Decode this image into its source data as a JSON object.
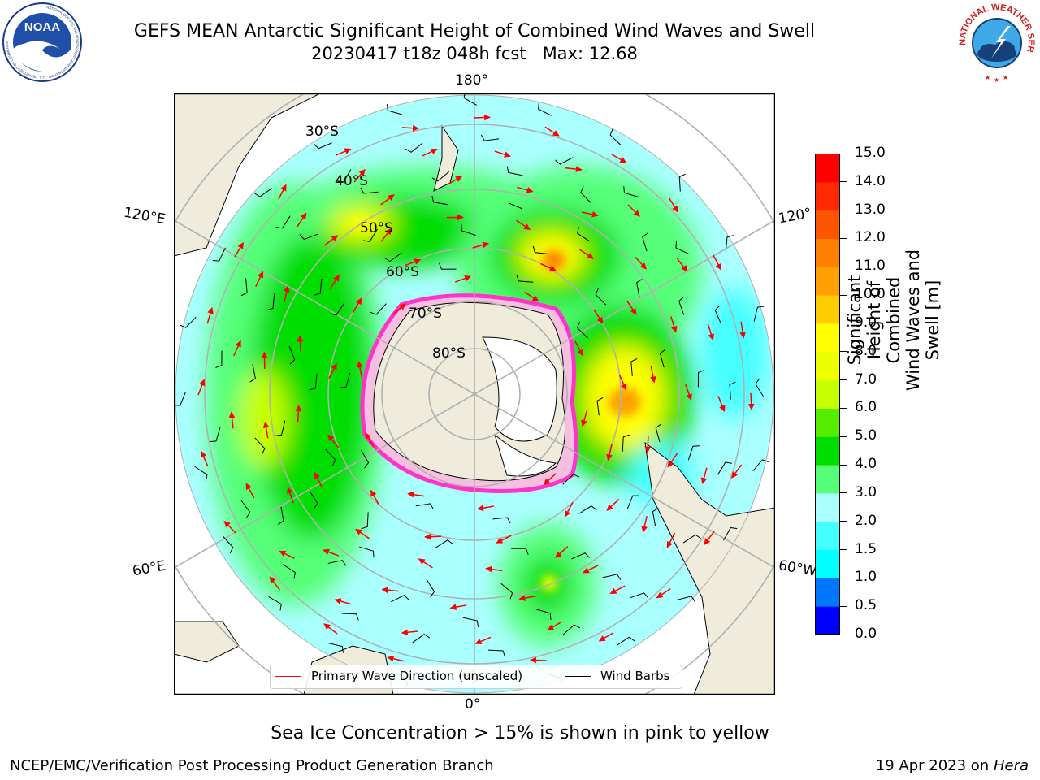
{
  "header": {
    "title_line1": "GEFS MEAN Antarctic Significant Height of Combined Wind Waves and Swell",
    "title_line2": "20230417 t18z 048h fcst   Max: 12.68"
  },
  "logos": {
    "left": "NOAA",
    "left_ring_text": "NATIONAL OCEANIC AND ATMOSPHERIC ADMINISTRATION · U.S. DEPARTMENT OF COMMERCE",
    "right_ring_text": "NATIONAL WEATHER SERVICE"
  },
  "map": {
    "longitude_labels": {
      "top": "180°",
      "upper_left": "120°E",
      "upper_right": "120°",
      "lower_left": "60°E",
      "lower_right": "60°W",
      "bottom": "0°"
    },
    "latitude_labels": [
      "30°S",
      "40°S",
      "50°S",
      "60°S",
      "70°S",
      "80°S"
    ],
    "colors": {
      "land": "#efecdc",
      "ice_edge": "#ff33cc",
      "ice_inner": "#f5c0e0"
    }
  },
  "legend": {
    "wave_direction": "Primary Wave Direction (unscaled)",
    "wind_barbs": "Wind Barbs",
    "wave_color": "#ff0000",
    "barb_color": "#000000"
  },
  "colorbar": {
    "label_line1": "Significant Height of Combined",
    "label_line2": "Wind Waves and Swell [m]",
    "ticks": [
      "0.0",
      "0.5",
      "1.0",
      "1.5",
      "2.0",
      "3.0",
      "4.0",
      "5.0",
      "6.0",
      "7.0",
      "8.0",
      "9.0",
      "10.0",
      "11.0",
      "12.0",
      "13.0",
      "14.0",
      "15.0"
    ],
    "colors": [
      "#0000ff",
      "#0077ff",
      "#00ffff",
      "#44ffff",
      "#aaffff",
      "#55ff77",
      "#00dd00",
      "#55ee00",
      "#c8ff00",
      "#eeff00",
      "#ffff00",
      "#ffcc00",
      "#ffa000",
      "#ff8000",
      "#ff5500",
      "#ff2a00",
      "#ff0000"
    ]
  },
  "footer": {
    "note": "Sea Ice Concentration > 15% is shown in pink to yellow",
    "left": "NCEP/EMC/Verification Post Processing Product Generation Branch",
    "right_date": "19 Apr 2023 on ",
    "right_machine": "Hera"
  }
}
